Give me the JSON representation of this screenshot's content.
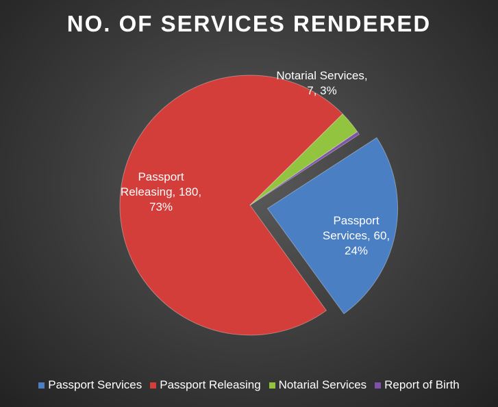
{
  "chart_data": {
    "type": "pie",
    "title": "NO. OF SERVICES RENDERED",
    "categories": [
      "Passport Services",
      "Passport Releasing",
      "Notarial Services",
      "Report of Birth"
    ],
    "values": [
      60,
      180,
      7,
      1
    ],
    "value_labels": [
      "Passport Services, 60, 24%",
      "Passport Releasing, 180, 73%",
      "Notarial Services, 7, 3%",
      null
    ],
    "colors": [
      "#4a7fc4",
      "#d33d3a",
      "#93c43f",
      "#7d52a8"
    ],
    "legend": "bottom"
  }
}
